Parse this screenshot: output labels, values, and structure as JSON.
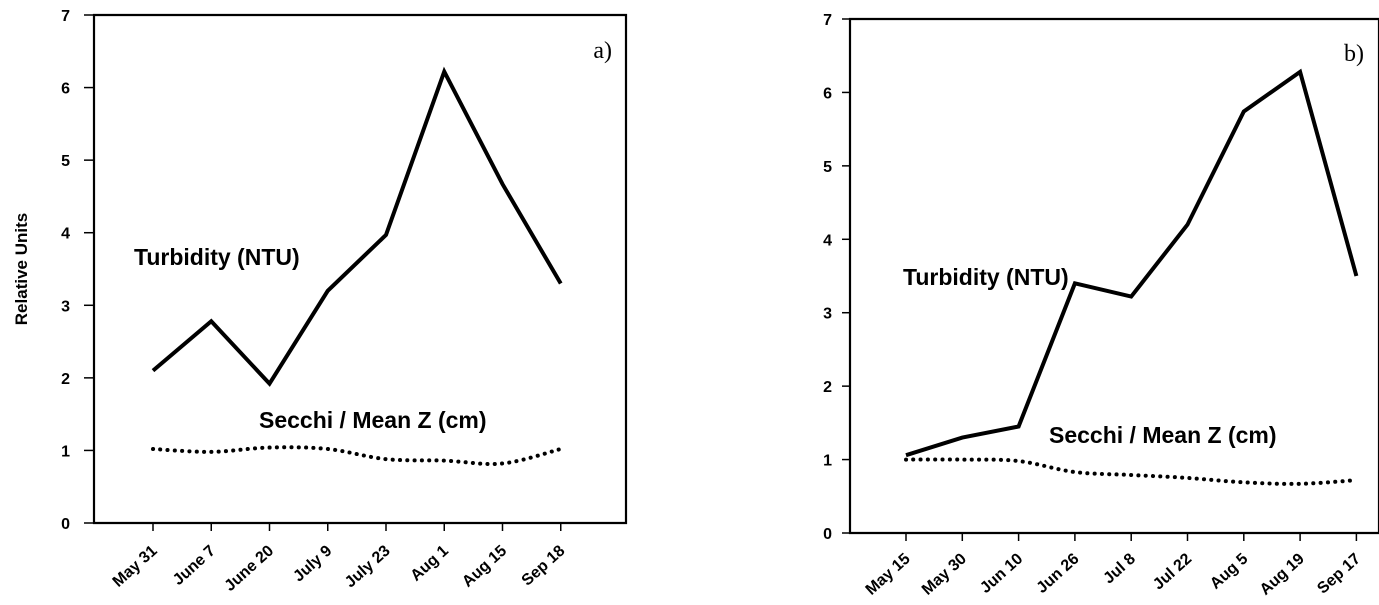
{
  "chart_data": [
    {
      "type": "line",
      "panel": "a)",
      "categories": [
        "May 31",
        "June 7",
        "June 20",
        "July 9",
        "July 23",
        "Aug 1",
        "Aug 15",
        "Sep 18"
      ],
      "series": [
        {
          "name": "Turbidity (NTU)",
          "values": [
            2.1,
            2.78,
            1.92,
            3.2,
            3.97,
            6.22,
            4.67,
            3.3
          ],
          "style": "solid",
          "color": "#000000"
        },
        {
          "name": "Secchi / Mean Z (cm)",
          "values": [
            1.02,
            0.98,
            1.04,
            1.02,
            0.88,
            0.86,
            0.82,
            1.02
          ],
          "style": "dotted",
          "color": "#000000"
        }
      ],
      "xlabel": "",
      "ylabel": "Relative Units",
      "ylim": [
        0,
        7
      ],
      "yticks": [
        "0",
        "1",
        "2",
        "3",
        "4",
        "5",
        "6",
        "7"
      ],
      "grid": false,
      "legend": "none"
    },
    {
      "type": "line",
      "panel": "b)",
      "categories": [
        "May 15",
        "May 30",
        "Jun 10",
        "Jun 26",
        "Jul 8",
        "Jul 22",
        "Aug 5",
        "Aug 19",
        "Sep 17"
      ],
      "series": [
        {
          "name": "Turbidity (NTU)",
          "values": [
            1.06,
            1.3,
            1.45,
            3.4,
            3.22,
            4.2,
            5.74,
            6.28,
            3.5
          ],
          "style": "solid",
          "color": "#000000"
        },
        {
          "name": "Secchi / Mean Z (cm)",
          "values": [
            1.0,
            1.0,
            0.98,
            0.83,
            0.79,
            0.75,
            0.69,
            0.67,
            0.72
          ],
          "style": "dotted",
          "color": "#000000"
        }
      ],
      "xlabel": "",
      "ylabel": "",
      "ylim": [
        0,
        7
      ],
      "yticks": [
        "0",
        "1",
        "2",
        "3",
        "4",
        "5",
        "6",
        "7"
      ],
      "grid": false,
      "legend": "none"
    }
  ]
}
